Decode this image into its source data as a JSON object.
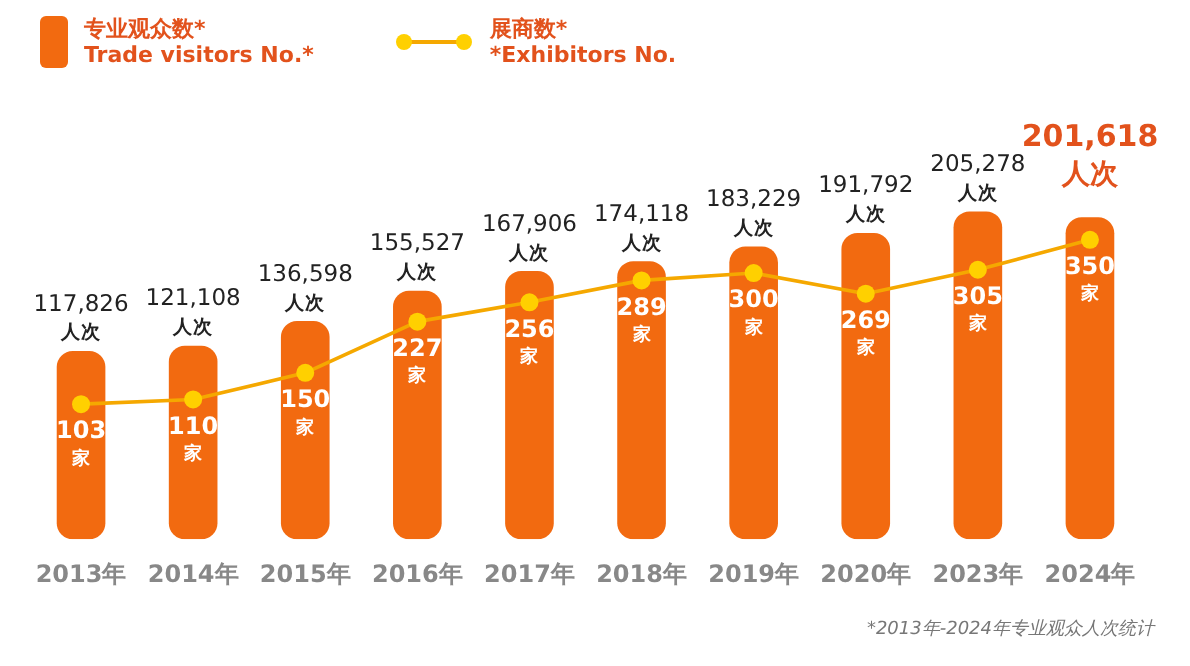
{
  "chart_data": {
    "type": "bar",
    "categories": [
      "2013年",
      "2014年",
      "2015年",
      "2016年",
      "2017年",
      "2018年",
      "2019年",
      "2020年",
      "2023年",
      "2024年"
    ],
    "series": [
      {
        "name": "专业观众数*\nTrade visitors No.*",
        "type": "bar",
        "color": "#f26a10",
        "values": [
          117826,
          121108,
          136598,
          155527,
          167906,
          174118,
          183229,
          191792,
          205278,
          201618
        ],
        "value_labels": [
          "117,826 人次",
          "121,108 人次",
          "136,598 人次",
          "155,527 人次",
          "167,906 人次",
          "174,118 人次",
          "183,229 人次",
          "191,792 人次",
          "205,278 人次",
          "201,618 人次"
        ]
      },
      {
        "name": "展商数*\n*Exhibitors No.",
        "type": "line",
        "axis": "y2",
        "color": "#f5a800",
        "marker": "circle",
        "values": [
          103,
          110,
          150,
          227,
          256,
          289,
          300,
          269,
          305,
          350
        ],
        "value_labels": [
          "103 家",
          "110 家",
          "150 家",
          "227 家",
          "256 家",
          "289 家",
          "300 家",
          "269 家",
          "305 家",
          "350 家"
        ]
      }
    ],
    "tick_labels": "x",
    "grid": false,
    "legend": "top left",
    "annotations": [
      "*2013年-2024年专业观众人次统计"
    ]
  }
}
